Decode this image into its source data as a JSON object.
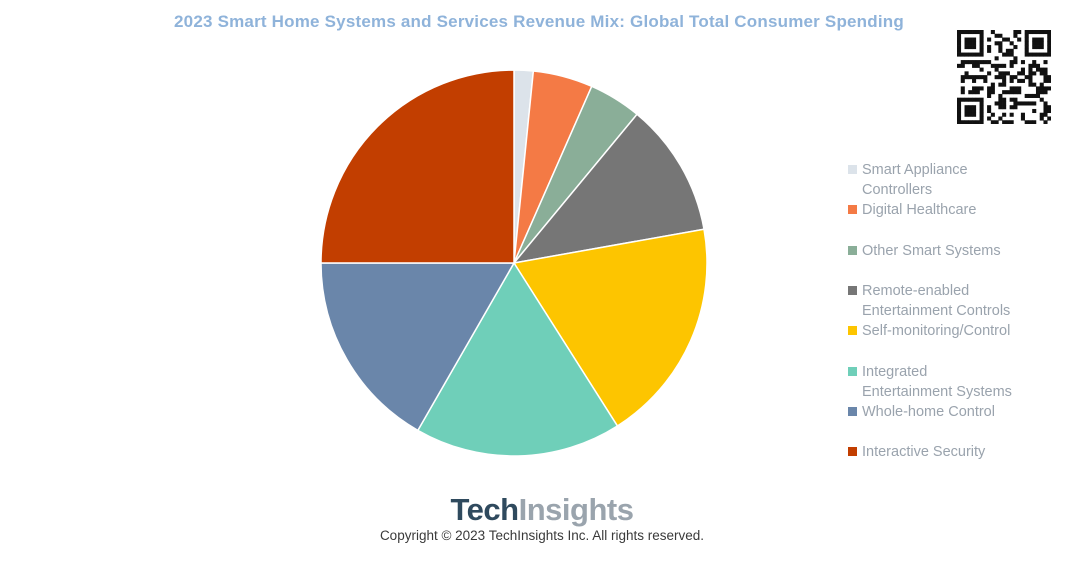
{
  "chart_data": {
    "type": "pie",
    "title": "2023 Smart Home Systems and Services Revenue Mix: Global Total Consumer Spending",
    "slices": [
      {
        "label": "Smart Appliance Controllers",
        "value": 1.6,
        "color": "#dce3ea"
      },
      {
        "label": "Digital Healthcare",
        "value": 5.0,
        "color": "#f47a45"
      },
      {
        "label": "Other Smart Systems",
        "value": 4.4,
        "color": "#8aae98"
      },
      {
        "label": "Remote-enabled Entertainment Controls",
        "value": 11.2,
        "color": "#767676"
      },
      {
        "label": "Self-monitoring/Control",
        "value": 18.8,
        "color": "#fdc500"
      },
      {
        "label": "Integrated Entertainment Systems",
        "value": 17.3,
        "color": "#6fcfb9"
      },
      {
        "label": "Whole-home Control",
        "value": 16.7,
        "color": "#6a86aa"
      },
      {
        "label": "Interactive Security",
        "value": 25.0,
        "color": "#c23e00"
      }
    ],
    "start_angle_deg": 0,
    "direction": "clockwise",
    "legend_position": "right"
  },
  "legend": {
    "items": [
      {
        "line1": "Smart Appliance",
        "line2": "Controllers"
      },
      {
        "line1": "Digital Healthcare",
        "line2": ""
      },
      {
        "line1": "Other Smart Systems",
        "line2": ""
      },
      {
        "line1": "Remote-enabled",
        "line2": "Entertainment Controls"
      },
      {
        "line1": "Self-monitoring/Control",
        "line2": ""
      },
      {
        "line1": "Integrated",
        "line2": "Entertainment Systems"
      },
      {
        "line1": "Whole-home Control",
        "line2": ""
      },
      {
        "line1": "Interactive Security",
        "line2": ""
      }
    ]
  },
  "branding": {
    "logo_part1": "Tech",
    "logo_part2": "Insights",
    "copyright": "Copyright © 2023 TechInsights Inc.  All rights reserved."
  },
  "qr_icon": "qr-code-icon"
}
